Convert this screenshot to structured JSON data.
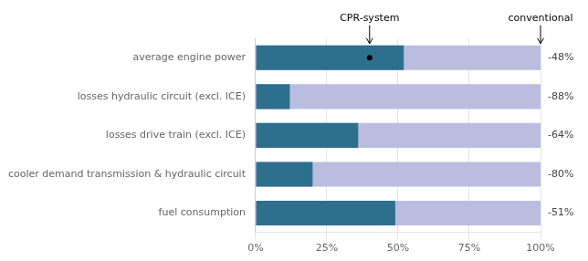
{
  "chart_data": {
    "type": "bar",
    "orientation": "horizontal",
    "categories": [
      "average engine power",
      "losses hydraulic circuit (excl. ICE)",
      "losses drive train (excl. ICE)",
      "cooler demand transmission & hydraulic circuit",
      "fuel consumption"
    ],
    "series": [
      {
        "color": "#bbbde0",
        "values": [
          1.0,
          1.0,
          1.0,
          1.0,
          1.0
        ]
      },
      {
        "color": "#2e6f8e",
        "values": [
          0.52,
          0.12,
          0.36,
          0.2,
          0.49
        ]
      }
    ],
    "xlim": [
      0,
      1.0
    ],
    "xticks": [
      {
        "value": 0,
        "label": "0%"
      },
      {
        "value": 0.25,
        "label": "25%"
      },
      {
        "value": 0.5,
        "label": "50%"
      },
      {
        "value": 0.75,
        "label": "75%"
      },
      {
        "value": 1.0,
        "label": "100%"
      }
    ],
    "grid": true,
    "annotations": [
      {
        "text": "CPR-system",
        "x": 0.4,
        "category": "average engine power",
        "marker": "circle"
      },
      {
        "text": "conventional",
        "x": 1.0,
        "category": "average engine power"
      },
      {
        "text": "-48%",
        "category": "average engine power"
      },
      {
        "text": "-88%",
        "category": "losses hydraulic circuit (excl. ICE)"
      },
      {
        "text": "-64%",
        "category": "losses drive train (excl. ICE)"
      },
      {
        "text": "-80%",
        "category": "cooler demand transmission & hydraulic circuit"
      },
      {
        "text": "-51%",
        "category": "fuel consumption"
      }
    ]
  }
}
